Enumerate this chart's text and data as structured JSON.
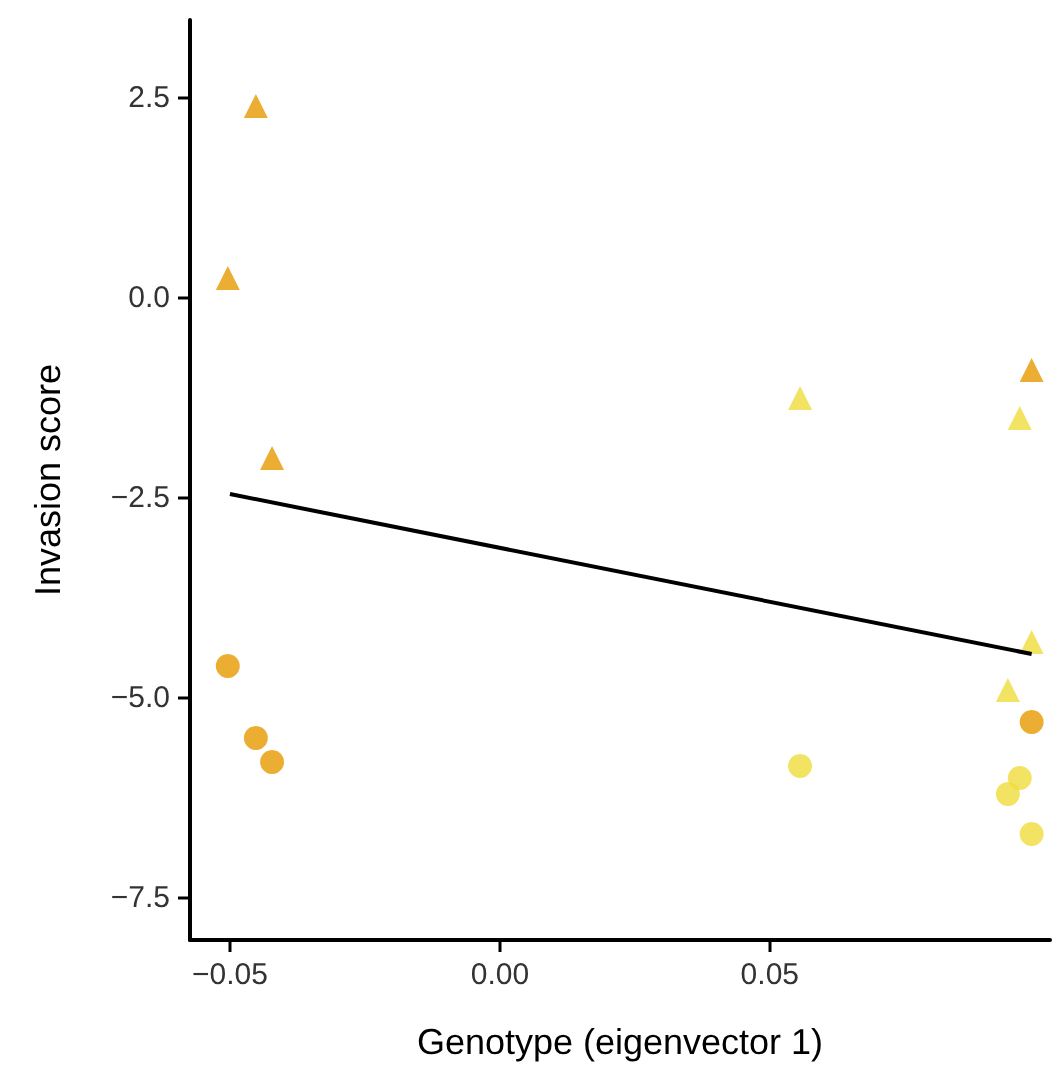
{
  "chart_data": {
    "type": "scatter",
    "xlabel": "Genotype (eigenvector 1)",
    "ylabel": "Invasion score",
    "xlim": [
      -0.0574,
      0.1019
    ],
    "ylim": [
      -8.025,
      3.475
    ],
    "xticks": [
      {
        "value": -0.05,
        "label": "−0.05"
      },
      {
        "value": 0,
        "label": "0.00"
      },
      {
        "value": 0.05,
        "label": "0.05"
      }
    ],
    "yticks": [
      {
        "value": -7.5,
        "label": "−7.5"
      },
      {
        "value": -5,
        "label": "−5.0"
      },
      {
        "value": -2.5,
        "label": "−2.5"
      },
      {
        "value": 0,
        "label": "0.0"
      },
      {
        "value": 2.5,
        "label": "2.5"
      }
    ],
    "grid": false,
    "series": [
      {
        "marker": "triangle",
        "color": "#e69a00",
        "x": [
          -0.0452,
          -0.0504,
          -0.0422,
          0.0985
        ],
        "values": [
          2.4,
          0.25,
          -2.0,
          -0.9
        ]
      },
      {
        "marker": "triangle",
        "color": "#f0dc3c",
        "x": [
          0.0556,
          0.0963,
          0.0985,
          0.0941
        ],
        "values": [
          -1.25,
          -1.5,
          -4.3,
          -4.9
        ]
      },
      {
        "marker": "circle",
        "color": "#e69a00",
        "x": [
          -0.0504,
          -0.0452,
          -0.0422,
          0.0985
        ],
        "values": [
          -4.6,
          -5.5,
          -5.8,
          -5.3
        ]
      },
      {
        "marker": "circle",
        "color": "#f0dc3c",
        "x": [
          0.0556,
          0.0963,
          0.0941,
          0.0985
        ],
        "values": [
          -5.85,
          -6.0,
          -6.2,
          -6.7
        ]
      },
      {
        "type": "line",
        "marker": "none",
        "color": "#000000",
        "x": [
          -0.05,
          0.0985
        ],
        "values": [
          -2.45,
          -4.45
        ]
      }
    ]
  }
}
